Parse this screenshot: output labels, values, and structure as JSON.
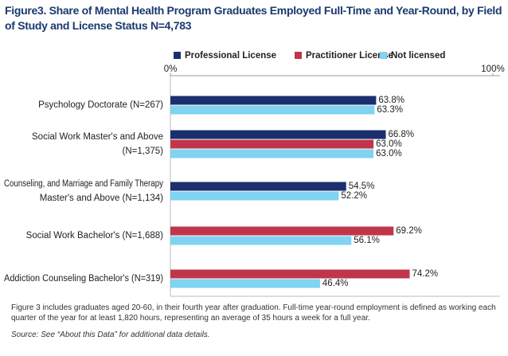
{
  "chart_data": {
    "type": "bar",
    "orientation": "horizontal",
    "title": "Figure3. Share of Mental Health Program Graduates Employed Full-Time and Year-Round, by Field of Study and License Status  N=4,783",
    "categories": [
      "Psychology Doctorate (N=267)",
      [
        "Social Work Master's and Above",
        "(N=1,375)"
      ],
      [
        "Counseling, and Marriage and Family Therapy",
        "Master's and Above (N=1,134)"
      ],
      "Social Work Bachelor's (N=1,688)",
      "Addiction Counseling Bachelor's (N=319)"
    ],
    "series": [
      {
        "name": "Professional License",
        "color": "#1b2f6e",
        "values": [
          63.8,
          66.8,
          54.5,
          null,
          null
        ],
        "value_labels": [
          "63.8%",
          "66.8%",
          "54.5%",
          null,
          null
        ]
      },
      {
        "name": "Practitioner License",
        "color": "#c1354b",
        "values": [
          null,
          63.0,
          null,
          69.2,
          74.2
        ],
        "value_labels": [
          null,
          "63.0%",
          null,
          "69.2%",
          "74.2%"
        ]
      },
      {
        "name": "Not licensed",
        "color": "#80d3f1",
        "values": [
          63.3,
          63.0,
          52.2,
          56.1,
          46.4
        ],
        "value_labels": [
          "63.3%",
          "63.0%",
          "52.2%",
          "56.1%",
          "46.4%"
        ]
      }
    ],
    "xlim": [
      0,
      100
    ],
    "xticks": [
      {
        "value": 0,
        "label": "0%"
      },
      {
        "value": 100,
        "label": "100%"
      }
    ],
    "legend": "top",
    "notes": "Figure 3 includes graduates aged 20-60, in their fourth year after graduation. Full-time year-round employment is defined as working each quarter of the year for at least 1,820 hours, representing an average of 35 hours a week for a full year.",
    "source": "Source: See “About this Data” for additional data details."
  }
}
